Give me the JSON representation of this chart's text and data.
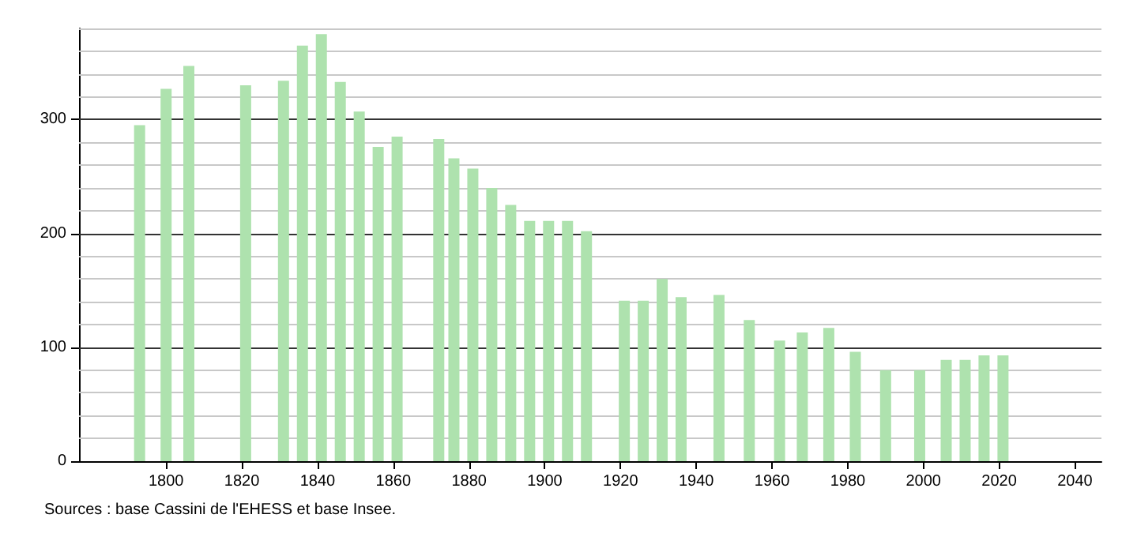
{
  "chart_data": {
    "type": "bar",
    "x": [
      1793,
      1800,
      1806,
      1821,
      1831,
      1836,
      1841,
      1846,
      1851,
      1856,
      1861,
      1872,
      1876,
      1881,
      1886,
      1891,
      1896,
      1901,
      1906,
      1911,
      1921,
      1926,
      1931,
      1936,
      1946,
      1954,
      1962,
      1968,
      1975,
      1982,
      1990,
      1999,
      2006,
      2011,
      2016,
      2021
    ],
    "values": [
      295,
      327,
      347,
      330,
      334,
      365,
      375,
      333,
      307,
      276,
      285,
      283,
      266,
      257,
      240,
      225,
      211,
      211,
      211,
      202,
      141,
      141,
      160,
      144,
      146,
      124,
      106,
      113,
      117,
      96,
      80,
      80,
      89,
      89,
      93,
      93
    ],
    "color": "#aee2ae",
    "xlim": [
      1777,
      2047
    ],
    "xticks": [
      1800,
      1820,
      1840,
      1860,
      1880,
      1900,
      1920,
      1940,
      1960,
      1980,
      2000,
      2020,
      2040
    ],
    "ylim": [
      0,
      380
    ],
    "yticks": [
      0,
      {
        "value": 20,
        "label": null
      },
      {
        "value": 40,
        "label": null
      },
      {
        "value": 60,
        "label": null
      },
      {
        "value": 80,
        "label": null
      },
      100,
      {
        "value": 120,
        "label": null
      },
      {
        "value": 140,
        "label": null
      },
      {
        "value": 160,
        "label": null
      },
      {
        "value": 180,
        "label": null
      },
      200,
      {
        "value": 220,
        "label": null
      },
      {
        "value": 240,
        "label": null
      },
      {
        "value": 260,
        "label": null
      },
      {
        "value": 280,
        "label": null
      },
      300,
      {
        "value": 320,
        "label": null
      },
      {
        "value": 340,
        "label": null
      },
      {
        "value": 360,
        "label": null
      },
      {
        "value": 380,
        "label": null
      }
    ],
    "grid": "y",
    "annotations": [
      "Sources : base Cassini de l'EHESS et base Insee."
    ]
  }
}
